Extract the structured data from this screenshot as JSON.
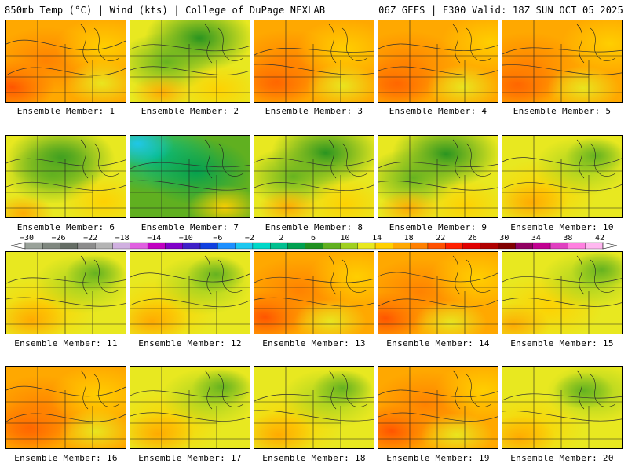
{
  "header": {
    "left_title": "850mb Temp (°C) | Wind (kts) | College of DuPage NEXLAB",
    "right_title": "06Z GEFS | F300 Valid: 18Z SUN OCT 05 2025"
  },
  "colorbar": {
    "labels": [
      "−30",
      "−26",
      "−22",
      "−18",
      "−14",
      "−10",
      "−6",
      "−2",
      "2",
      "6",
      "10",
      "14",
      "18",
      "22",
      "26",
      "30",
      "34",
      "38",
      "42"
    ],
    "colors": [
      "#9aa29a",
      "#7f877f",
      "#656d65",
      "#8c8c8c",
      "#b4b4b4",
      "#d0b0e0",
      "#e060e0",
      "#c000c0",
      "#8000c8",
      "#4020c8",
      "#1040e0",
      "#1e90ff",
      "#1ec8f0",
      "#00d8c8",
      "#00c090",
      "#00a050",
      "#209020",
      "#60b020",
      "#a0d020",
      "#e8e820",
      "#ffd000",
      "#ffa800",
      "#ff8000",
      "#ff5000",
      "#ff2000",
      "#e00000",
      "#b00000",
      "#800000",
      "#900060",
      "#c00090",
      "#e040c0",
      "#ff80e0",
      "#ffb8f0"
    ]
  },
  "members": [
    {
      "label": "Ensemble Member: 1",
      "scheme": "warm"
    },
    {
      "label": "Ensemble Member: 2",
      "scheme": "cool"
    },
    {
      "label": "Ensemble Member: 3",
      "scheme": "warm"
    },
    {
      "label": "Ensemble Member: 4",
      "scheme": "warm"
    },
    {
      "label": "Ensemble Member: 5",
      "scheme": "warm"
    },
    {
      "label": "Ensemble Member: 6",
      "scheme": "cool"
    },
    {
      "label": "Ensemble Member: 7",
      "scheme": "cold"
    },
    {
      "label": "Ensemble Member: 8",
      "scheme": "cool"
    },
    {
      "label": "Ensemble Member: 9",
      "scheme": "cool"
    },
    {
      "label": "Ensemble Member: 10",
      "scheme": "mild"
    },
    {
      "label": "Ensemble Member: 11",
      "scheme": "mild"
    },
    {
      "label": "Ensemble Member: 12",
      "scheme": "mild"
    },
    {
      "label": "Ensemble Member: 13",
      "scheme": "warm"
    },
    {
      "label": "Ensemble Member: 14",
      "scheme": "warm"
    },
    {
      "label": "Ensemble Member: 15",
      "scheme": "mild"
    },
    {
      "label": "Ensemble Member: 16",
      "scheme": "warm"
    },
    {
      "label": "Ensemble Member: 17",
      "scheme": "mild"
    },
    {
      "label": "Ensemble Member: 18",
      "scheme": "mild"
    },
    {
      "label": "Ensemble Member: 19",
      "scheme": "warm"
    },
    {
      "label": "Ensemble Member: 20",
      "scheme": "mild"
    }
  ]
}
